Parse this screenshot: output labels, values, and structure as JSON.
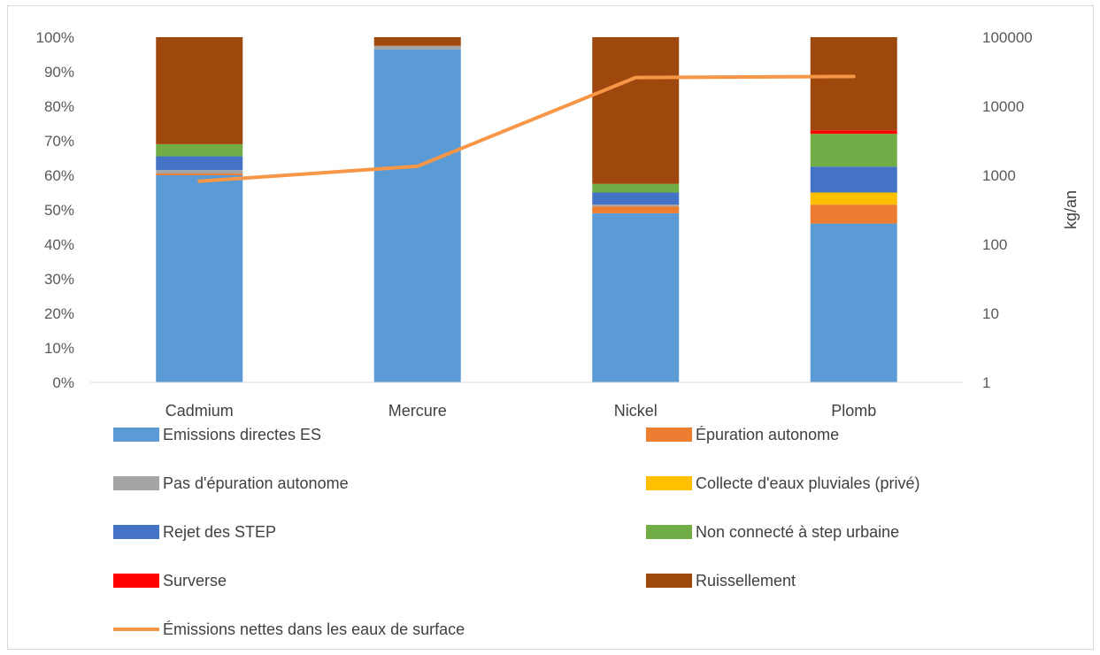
{
  "chart_data": {
    "type": "bar",
    "stacked": true,
    "categories": [
      "Cadmium",
      "Mercure",
      "Nickel",
      "Plomb"
    ],
    "y_ticks": [
      "0%",
      "10%",
      "20%",
      "30%",
      "40%",
      "50%",
      "60%",
      "70%",
      "80%",
      "90%",
      "100%"
    ],
    "ylim": [
      0,
      1
    ],
    "y2_ticks": [
      "1",
      "10",
      "100",
      "1000",
      "10000",
      "100000"
    ],
    "y2_scale": "log",
    "y2lim": [
      1,
      100000
    ],
    "y2label": "kg/an",
    "grid": false,
    "legend_position": "bottom",
    "series": [
      {
        "name": "Emissions directes ES",
        "color": "#5b9bd5",
        "values": [
          0.6,
          0.965,
          0.49,
          0.46
        ]
      },
      {
        "name": "Épuration autonome",
        "color": "#ed7d31",
        "values": [
          0.005,
          0.0,
          0.02,
          0.055
        ]
      },
      {
        "name": "Pas d'épuration autonome",
        "color": "#a5a5a5",
        "values": [
          0.01,
          0.01,
          0.005,
          0.0
        ]
      },
      {
        "name": "Collecte d'eaux pluviales (privé)",
        "color": "#ffc000",
        "values": [
          0.0,
          0.0,
          0.0,
          0.035
        ]
      },
      {
        "name": "Rejet des STEP",
        "color": "#4472c4",
        "values": [
          0.04,
          0.0,
          0.035,
          0.075
        ]
      },
      {
        "name": "Non connecté à step urbaine",
        "color": "#70ad47",
        "values": [
          0.035,
          0.0,
          0.025,
          0.095
        ]
      },
      {
        "name": "Surverse",
        "color": "#ff0000",
        "values": [
          0.0,
          0.0,
          0.0,
          0.01
        ]
      },
      {
        "name": "Ruissellement",
        "color": "#9e480e",
        "values": [
          0.31,
          0.025,
          0.425,
          0.27
        ]
      }
    ],
    "line_series": {
      "name": "Émissions nettes dans les eaux de surface",
      "color": "#f79646",
      "axis": "secondary",
      "values": [
        820,
        1350,
        26000,
        27000
      ]
    }
  }
}
